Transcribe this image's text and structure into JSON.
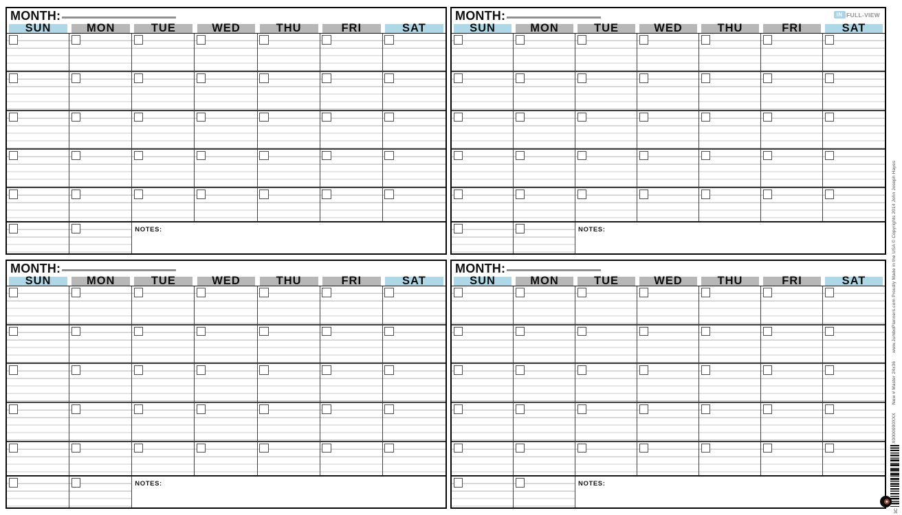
{
  "brand": {
    "badge_in": "IN",
    "badge_fullview": "FULL-VIEW"
  },
  "calendar": {
    "month_label": "MONTH:",
    "month_value": "",
    "day_headers": [
      "SUN",
      "MON",
      "TUE",
      "WED",
      "THU",
      "FRI",
      "SAT"
    ],
    "weekend_days": [
      "SUN",
      "SAT"
    ],
    "week_rows": 5,
    "notes_label": "NOTES:",
    "quadrants": [
      {
        "position": "top-left",
        "month_value": ""
      },
      {
        "position": "top-right",
        "month_value": ""
      },
      {
        "position": "bottom-left",
        "month_value": ""
      },
      {
        "position": "bottom-right",
        "month_value": ""
      }
    ]
  },
  "edge_strip": {
    "vertical_text": "www.JumboPlanners.com  Proudly Made in the USA © Copyrights 2014 John Joseph Hayes",
    "product_text": "New   # Master 24x36",
    "code_text": "X0000000XXX",
    "barcode_caption": "3C"
  },
  "colors": {
    "weekend_header": "#aed8e8",
    "weekday_header": "#b7b7b7",
    "badge_blue": "#a9d4e6",
    "rule_line": "#cbcbcb",
    "grid_line": "#3e3e3e",
    "underline_gray": "#909090"
  }
}
